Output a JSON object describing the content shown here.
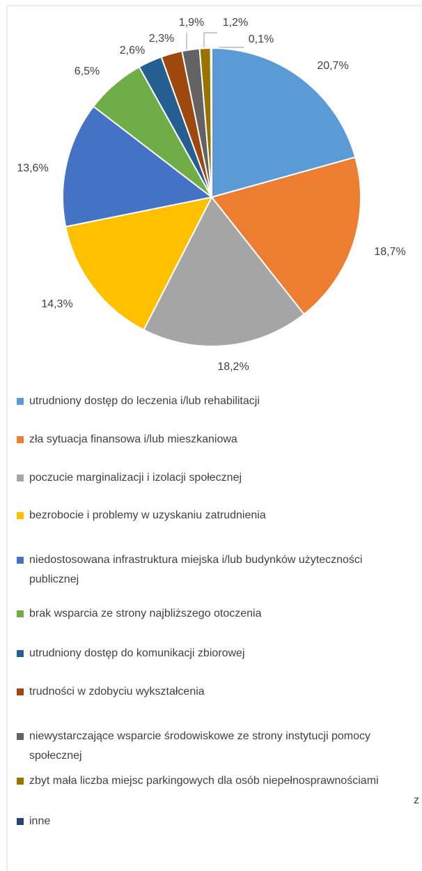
{
  "chart_data": {
    "type": "pie",
    "categories": [
      "utrudniony dostęp do leczenia i/lub rehabilitacji",
      "zła sytuacja finansowa i/lub mieszkaniowa",
      "poczucie marginalizacji i izolacji społecznej",
      "bezrobocie i problemy w uzyskaniu zatrudnienia",
      "niedostosowana infrastruktura miejska i/lub budynków użyteczności publicznej",
      "brak wsparcia ze strony najbliższego otoczenia",
      "utrudniony dostęp do komunikacji zbiorowej",
      "trudności w zdobyciu wykształcenia",
      "niewystarczające wsparcie środowiskowe ze strony instytucji pomocy społecznej",
      "zbyt mała liczba miejsc parkingowych dla osób niepełnosprawnościami",
      "inne"
    ],
    "values": [
      20.7,
      18.7,
      18.2,
      14.3,
      13.6,
      6.5,
      2.6,
      2.3,
      1.9,
      1.2,
      0.1
    ],
    "value_labels": [
      "20,7%",
      "18,7%",
      "18,2%",
      "14,3%",
      "13,6%",
      "6,5%",
      "2,6%",
      "2,3%",
      "1,9%",
      "1,2%",
      "0,1%"
    ],
    "colors": [
      "#5b9bd5",
      "#ed7d31",
      "#a5a5a5",
      "#ffc000",
      "#4472c4",
      "#70ad47",
      "#255e91",
      "#9e480e",
      "#636363",
      "#997300",
      "#264478"
    ],
    "legend": "bottom",
    "annotations": [
      "z"
    ]
  }
}
